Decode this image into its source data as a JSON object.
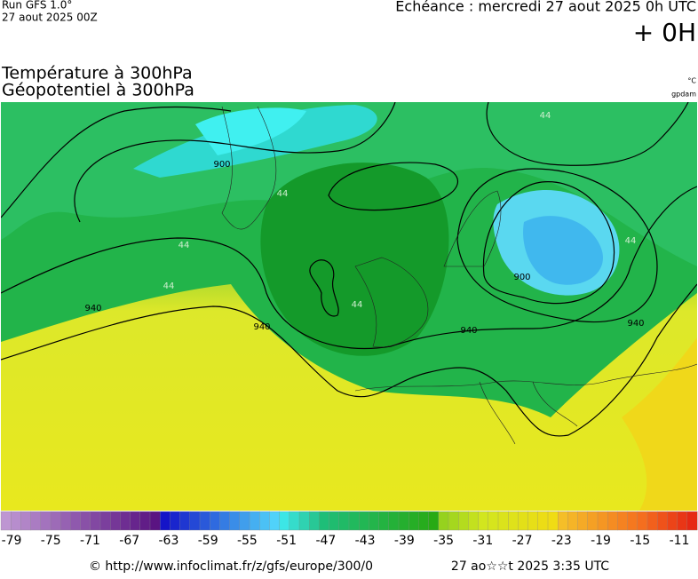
{
  "header": {
    "run": "Run GFS 1.0°",
    "date": "27 aout 2025 00Z",
    "echeance": "Echéance : mercredi 27 aout 2025 0h UTC",
    "lead": "+ 0H"
  },
  "titles": [
    "Température à 300hPa",
    "Géopotentiel à 300hPa"
  ],
  "units": [
    "°C",
    "gpdam"
  ],
  "contour_labels": [
    900,
    940,
    940,
    940,
    940,
    900,
    44,
    44,
    44,
    44,
    44,
    44
  ],
  "scale": {
    "ticks": [
      -79,
      -75,
      -71,
      -67,
      -63,
      -59,
      -55,
      -51,
      -47,
      -43,
      -39,
      -35,
      -31,
      -27,
      -23,
      -19,
      -15,
      -11
    ]
  },
  "footer": {
    "source": "© http://www.infoclimat.fr/z/gfs/europe/300/0",
    "generated": "27 ao☆☆t 2025  3:35 UTC"
  }
}
